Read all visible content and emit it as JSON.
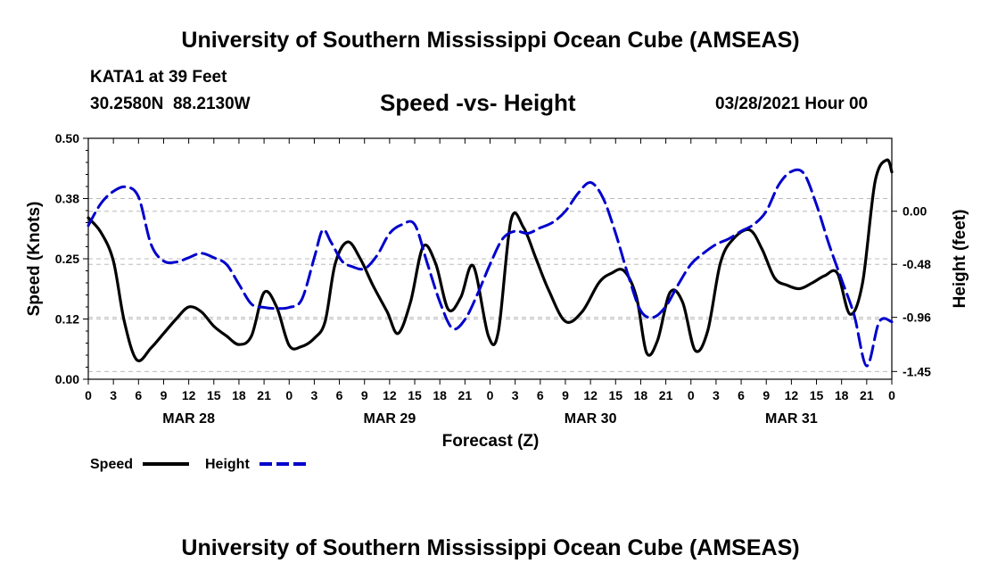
{
  "header": {
    "title_top": "University of Southern Mississippi Ocean Cube (AMSEAS)",
    "station": "KATA1 at 39 Feet",
    "coords": "30.2580N  88.2130W",
    "plot_title": "Speed -vs- Height",
    "date": "03/28/2021 Hour 00",
    "title_bottom": "University of Southern Mississippi Ocean Cube (AMSEAS)"
  },
  "chart_data": {
    "type": "line",
    "title": "Speed -vs- Height",
    "xlabel": "Forecast (Z)",
    "ylabel_left": "Speed (Knots)",
    "ylabel_right": "Height (feet)",
    "x_range_hours": [
      0,
      96
    ],
    "y_left_range": [
      0,
      0.5
    ],
    "y_left_ticks": [
      "0.00",
      "0.12",
      "0.25",
      "0.38",
      "0.50"
    ],
    "y_left_tick_values": [
      0,
      0.125,
      0.25,
      0.375,
      0.5
    ],
    "y_right_range": [
      -1.52,
      0.66
    ],
    "y_right_ticks": [
      "-1.45",
      "-0.96",
      "-0.48",
      "0.00"
    ],
    "y_right_tick_values": [
      -1.45,
      -0.96,
      -0.48,
      0.0
    ],
    "x_ticks": [
      "0",
      "3",
      "6",
      "9",
      "12",
      "15",
      "18",
      "21",
      "0",
      "3",
      "6",
      "9",
      "12",
      "15",
      "18",
      "21",
      "0",
      "3",
      "6",
      "9",
      "12",
      "15",
      "18",
      "21",
      "0",
      "3",
      "6",
      "9",
      "12",
      "15",
      "18",
      "21",
      "0"
    ],
    "day_labels": [
      {
        "label": "MAR 28",
        "hour": 12
      },
      {
        "label": "MAR 29",
        "hour": 36
      },
      {
        "label": "MAR 30",
        "hour": 60
      },
      {
        "label": "MAR 31",
        "hour": 84
      }
    ],
    "grid": true,
    "legend": [
      {
        "name": "Speed",
        "color": "#000000",
        "dash": "solid"
      },
      {
        "name": "Height",
        "color": "#0000cc",
        "dash": "dashed"
      }
    ],
    "series": [
      {
        "name": "Speed",
        "axis": "left",
        "hours": [
          0,
          1.5,
          3,
          4.3,
          5.8,
          7.5,
          9,
          10.5,
          12,
          13.5,
          15,
          16.5,
          18,
          19.5,
          21,
          22.5,
          24,
          25.5,
          27,
          28.3,
          29.5,
          31,
          32.5,
          34,
          35.7,
          37,
          38.5,
          40,
          41.5,
          43,
          44.5,
          46,
          47.8,
          49,
          50.5,
          52,
          53.5,
          55,
          57,
          59,
          61,
          62.5,
          64,
          65.5,
          66.7,
          68,
          69.5,
          71,
          72.5,
          74,
          75.5,
          77,
          79,
          80.5,
          82,
          83.5,
          85,
          86.5,
          88,
          89.5,
          91,
          92.5,
          94,
          95.4,
          96
        ],
        "values": [
          0.335,
          0.305,
          0.245,
          0.12,
          0.04,
          0.065,
          0.095,
          0.125,
          0.15,
          0.14,
          0.11,
          0.09,
          0.072,
          0.09,
          0.18,
          0.15,
          0.07,
          0.068,
          0.085,
          0.12,
          0.24,
          0.285,
          0.25,
          0.195,
          0.14,
          0.095,
          0.16,
          0.275,
          0.24,
          0.145,
          0.17,
          0.235,
          0.09,
          0.1,
          0.33,
          0.315,
          0.25,
          0.185,
          0.12,
          0.14,
          0.2,
          0.22,
          0.225,
          0.17,
          0.055,
          0.08,
          0.18,
          0.16,
          0.06,
          0.1,
          0.24,
          0.29,
          0.31,
          0.27,
          0.21,
          0.195,
          0.188,
          0.2,
          0.215,
          0.22,
          0.135,
          0.2,
          0.41,
          0.455,
          0.43
        ]
      },
      {
        "name": "Height",
        "axis": "right",
        "hours": [
          0,
          1.5,
          3,
          4.5,
          6,
          7.5,
          9,
          10.5,
          12,
          13.5,
          15,
          16.5,
          18,
          19.5,
          21,
          22.5,
          24,
          25.5,
          27,
          28,
          29,
          30.3,
          31.5,
          33,
          34.5,
          36,
          37.5,
          39,
          40.5,
          42,
          43.5,
          45,
          46.5,
          48,
          49.5,
          51,
          52.5,
          54,
          55.5,
          57,
          58.5,
          60,
          61.5,
          63,
          64.5,
          66,
          67.5,
          69,
          70.5,
          72,
          73.5,
          75,
          76.5,
          78,
          79.5,
          81,
          82.5,
          84,
          85.5,
          87,
          88.5,
          90,
          91.5,
          93,
          94.5,
          96
        ],
        "values": [
          -0.13,
          0.07,
          0.18,
          0.22,
          0.13,
          -0.3,
          -0.45,
          -0.46,
          -0.42,
          -0.38,
          -0.42,
          -0.48,
          -0.66,
          -0.84,
          -0.87,
          -0.88,
          -0.87,
          -0.8,
          -0.42,
          -0.17,
          -0.28,
          -0.45,
          -0.5,
          -0.52,
          -0.4,
          -0.2,
          -0.12,
          -0.12,
          -0.47,
          -0.82,
          -1.06,
          -0.98,
          -0.75,
          -0.48,
          -0.25,
          -0.18,
          -0.2,
          -0.15,
          -0.1,
          0.0,
          0.16,
          0.26,
          0.12,
          -0.2,
          -0.58,
          -0.9,
          -0.96,
          -0.86,
          -0.66,
          -0.48,
          -0.38,
          -0.3,
          -0.25,
          -0.18,
          -0.12,
          0.0,
          0.24,
          0.36,
          0.34,
          0.06,
          -0.3,
          -0.62,
          -0.94,
          -1.4,
          -1.0,
          -1.0
        ]
      }
    ]
  }
}
